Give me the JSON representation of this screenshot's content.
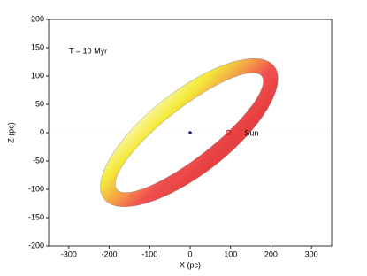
{
  "chart_data": {
    "type": "scatter",
    "annotation": "T = 10 Myr",
    "x_label": "X (pc)",
    "y_label": "Z (pc)",
    "xlim": [
      -350,
      350
    ],
    "ylim": [
      -200,
      200
    ],
    "xticks": [
      -300,
      -200,
      -100,
      0,
      100,
      200,
      300
    ],
    "yticks": [
      -200,
      -150,
      -100,
      -50,
      0,
      50,
      100,
      150,
      200
    ],
    "series": [
      {
        "color": "#1a1a8c",
        "x": [
          0
        ],
        "values": [
          0
        ]
      },
      {
        "name": "Sun",
        "color": "#c03020",
        "x": [
          95
        ],
        "values": [
          0
        ]
      }
    ]
  }
}
